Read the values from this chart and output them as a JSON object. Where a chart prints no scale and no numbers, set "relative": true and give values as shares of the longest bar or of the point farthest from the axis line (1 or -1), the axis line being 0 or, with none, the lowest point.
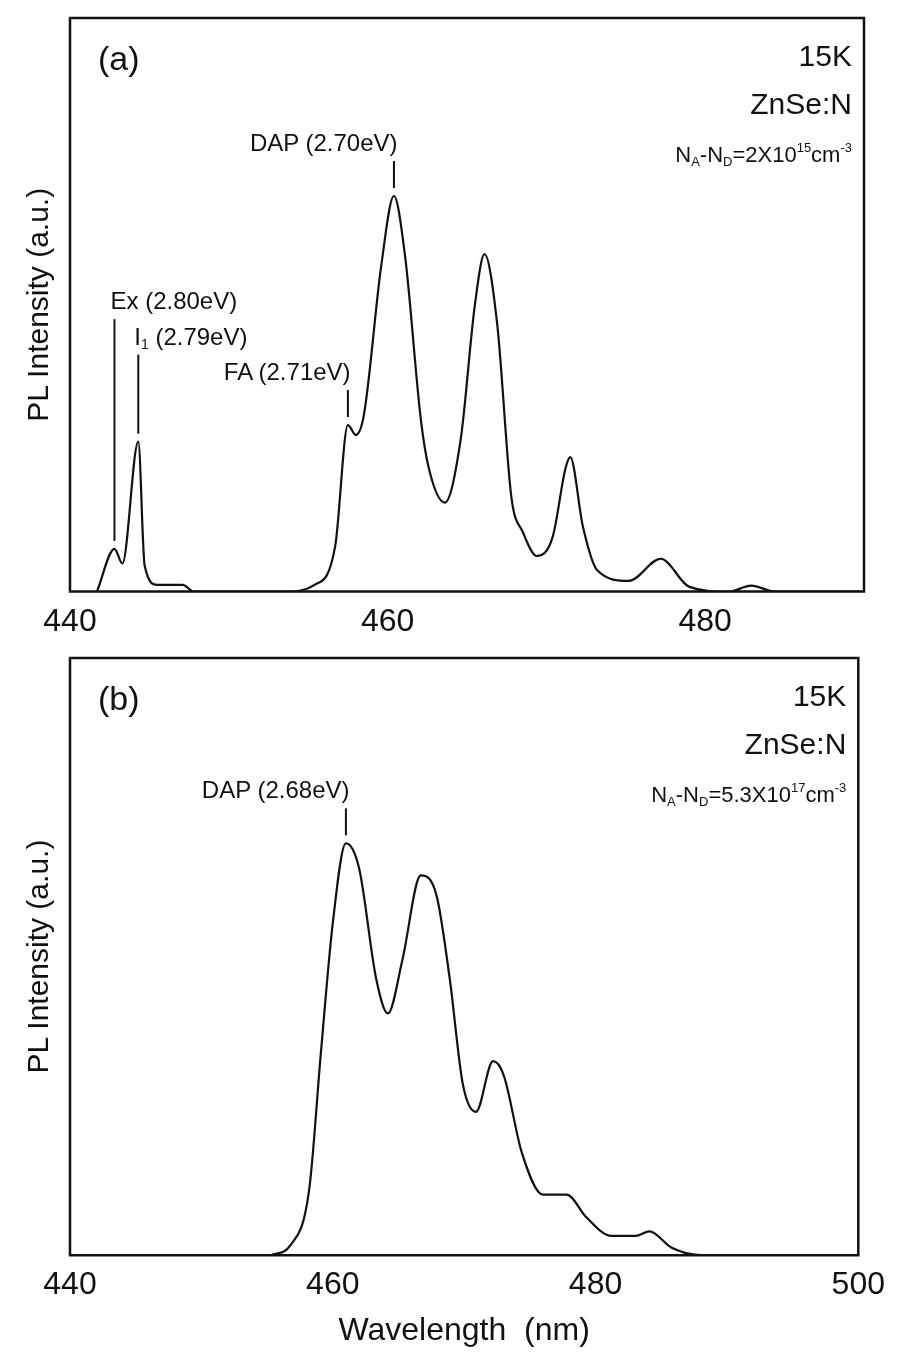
{
  "chart_data": [
    {
      "type": "line",
      "ylabel": "PL Intensity (a.u.)",
      "relative": true,
      "xlim": [
        440,
        490
      ],
      "xticks": [
        440,
        460,
        480
      ],
      "annotations": [
        "(a)",
        "15K",
        "ZnSe:N",
        "N$_{A}$-N$_{D}$=2X10$^{15}$cm$^{-3}$",
        {
          "text": "Ex (2.80eV)",
          "x": 442.8,
          "y": 0.108
        },
        {
          "text": "I$_{1}$ (2.79eV)",
          "x": 444.3,
          "y": 0.379
        },
        {
          "text": "FA (2.71eV)",
          "x": 457.5,
          "y": 0.421
        },
        {
          "text": "DAP (2.70eV)",
          "x": 460.4,
          "y": 1
        }
      ],
      "series": [
        {
          "color": "#111111",
          "x": [
            441.7,
            442.8,
            443.3,
            444.3,
            444.7,
            445.5,
            447.1,
            447.8,
            453.5,
            455.4,
            456.7,
            457.5,
            458.0,
            458.5,
            459.6,
            460.4,
            461.1,
            462.1,
            462.6,
            463.6,
            464.6,
            465.5,
            466.1,
            466.9,
            467.8,
            468.5,
            469.4,
            470.4,
            471.2,
            471.5,
            472.3,
            473.2,
            475.2,
            477.2,
            479.0,
            481.5,
            482.9,
            484.4,
            489.8
          ],
          "values": [
            0,
            0.108,
            0.071,
            0.379,
            0.066,
            0.017,
            0.017,
            0,
            0,
            0.017,
            0.115,
            0.421,
            0.396,
            0.445,
            0.824,
            1,
            0.848,
            0.433,
            0.311,
            0.225,
            0.384,
            0.726,
            0.853,
            0.677,
            0.237,
            0.152,
            0.09,
            0.139,
            0.311,
            0.34,
            0.164,
            0.054,
            0.027,
            0.083,
            0.012,
            0,
            0.015,
            0,
            0
          ]
        }
      ]
    },
    {
      "type": "line",
      "xlabel": "Wavelength  (nm)",
      "ylabel": "PL Intensity (a.u.)",
      "relative": true,
      "xlim": [
        440,
        500
      ],
      "xticks": [
        440,
        460,
        480,
        500
      ],
      "annotations": [
        "(b)",
        "15K",
        "ZnSe:N",
        "N$_{A}$-N$_{D}$=5.3X10$^{17}$cm$^{-3}$",
        {
          "text": "DAP (2.68eV)",
          "x": 461.0,
          "y": 1
        }
      ],
      "series": [
        {
          "color": "#111111",
          "x": [
            455.3,
            456.8,
            458.2,
            459.1,
            460.0,
            461.0,
            462.0,
            463.3,
            464.2,
            465.3,
            466.7,
            467.9,
            468.9,
            469.9,
            470.9,
            472.2,
            473.0,
            474.4,
            476.0,
            477.8,
            479.3,
            481.2,
            483.1,
            484.1,
            485.8,
            488.1,
            498
          ],
          "values": [
            0,
            0.025,
            0.158,
            0.493,
            0.806,
            1,
            0.94,
            0.672,
            0.587,
            0.717,
            0.922,
            0.873,
            0.672,
            0.415,
            0.348,
            0.471,
            0.438,
            0.248,
            0.147,
            0.147,
            0.092,
            0.047,
            0.047,
            0.058,
            0.018,
            0,
            0
          ]
        }
      ]
    }
  ]
}
